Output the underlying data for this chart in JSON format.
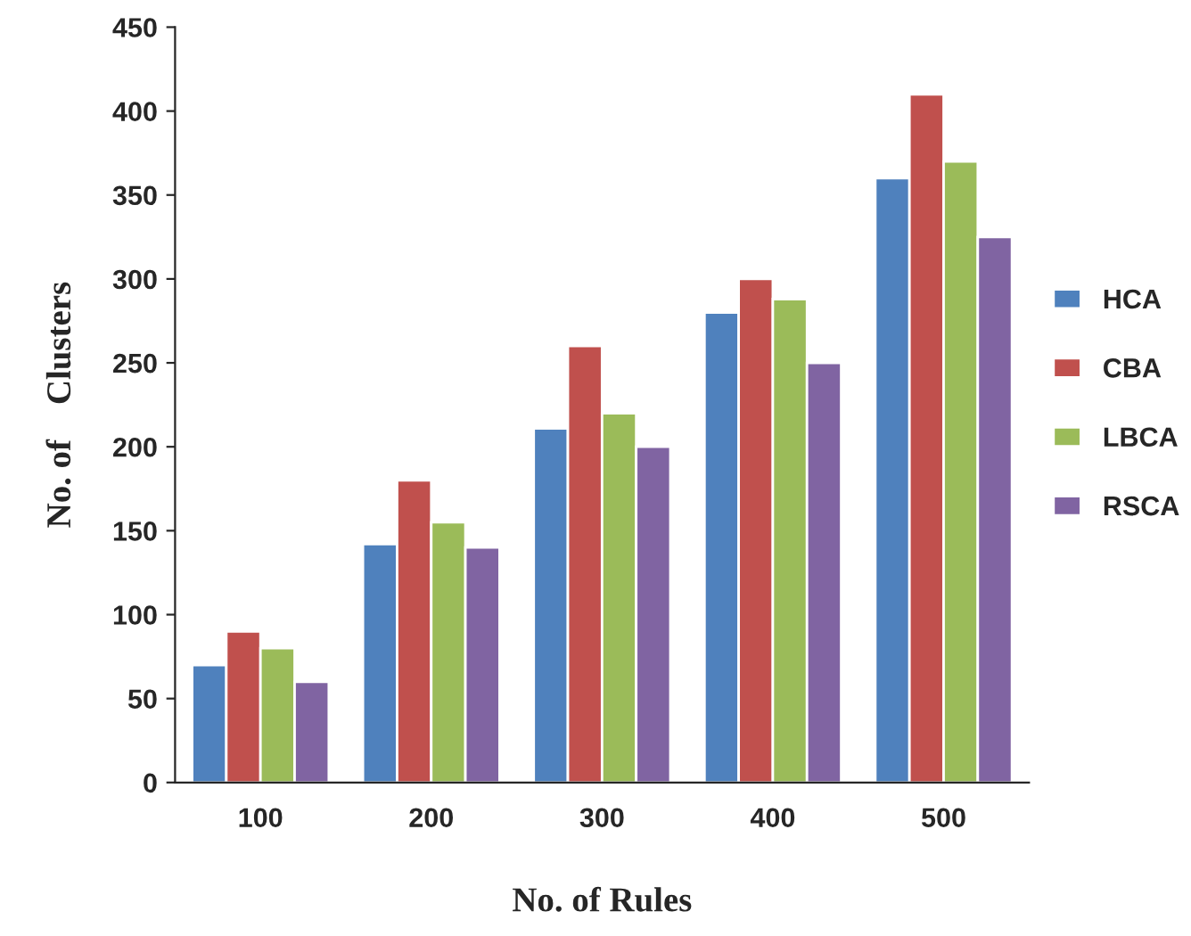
{
  "chart_data": {
    "type": "bar",
    "xlabel": "No. of Rules",
    "ylabel": "No. of    Clusters",
    "categories": [
      "100",
      "200",
      "300",
      "400",
      "500"
    ],
    "series": [
      {
        "name": "HCA",
        "color": "#4f81bd",
        "values": [
          70,
          142,
          211,
          280,
          360
        ]
      },
      {
        "name": "CBA",
        "color": "#c0504d",
        "values": [
          90,
          180,
          260,
          300,
          410
        ]
      },
      {
        "name": "LBCA",
        "color": "#9bbb59",
        "values": [
          80,
          155,
          220,
          288,
          370
        ]
      },
      {
        "name": "RSCA",
        "color": "#8064a2",
        "values": [
          60,
          140,
          200,
          250,
          325
        ]
      }
    ],
    "ylim": [
      0,
      450
    ],
    "yticks": [
      0,
      50,
      100,
      150,
      200,
      250,
      300,
      350,
      400,
      450
    ],
    "grid": false,
    "legend": "right"
  }
}
